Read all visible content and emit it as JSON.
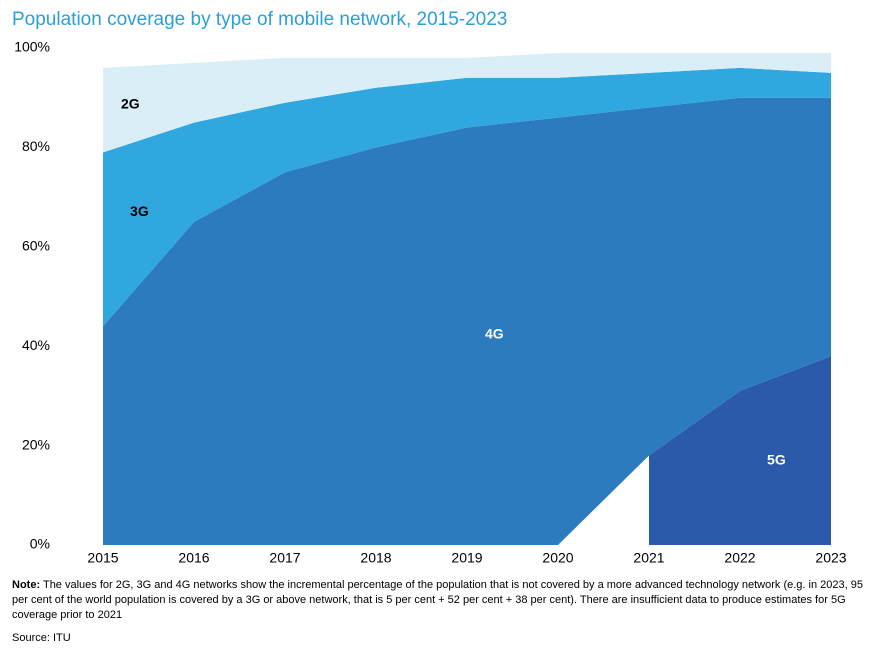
{
  "chart_data": {
    "type": "stacked_area",
    "title": "Population coverage by type of mobile network, 2015-2023",
    "x": [
      2015,
      2016,
      2017,
      2018,
      2019,
      2020,
      2021,
      2022,
      2023
    ],
    "xlim": [
      2015,
      2023
    ],
    "ylim": [
      0,
      100
    ],
    "yticks": [
      {
        "value": 0,
        "label": "0%"
      },
      {
        "value": 20,
        "label": "20%"
      },
      {
        "value": 40,
        "label": "40%"
      },
      {
        "value": 60,
        "label": "60%"
      },
      {
        "value": 80,
        "label": "80%"
      },
      {
        "value": 100,
        "label": "100%"
      }
    ],
    "series": [
      {
        "name": "5G",
        "color": "#2b5aab",
        "values": [
          null,
          null,
          null,
          null,
          null,
          null,
          18,
          31,
          38
        ]
      },
      {
        "name": "4G",
        "color": "#2c7bbf",
        "values": [
          44,
          65,
          75,
          80,
          84,
          86,
          70,
          59,
          52
        ]
      },
      {
        "name": "3G",
        "color": "#30a7de",
        "values": [
          35,
          20,
          14,
          12,
          10,
          8,
          7,
          6,
          5
        ]
      },
      {
        "name": "2G",
        "color": "#daeef8",
        "values": [
          17,
          12,
          9,
          6,
          4,
          5,
          4,
          3,
          4
        ]
      }
    ],
    "note_label": "Note:",
    "note": "The values for 2G, 3G and 4G networks show the incremental percentage of the population that is not covered by a more advanced technology network (e.g. in 2023, 95 per cent of the world population is covered by a 3G or above network, that is 5 per cent + 52 per cent + 38 per cent). There are insufficient data to produce estimates for 5G coverage prior to 2021",
    "source": "Source: ITU"
  }
}
